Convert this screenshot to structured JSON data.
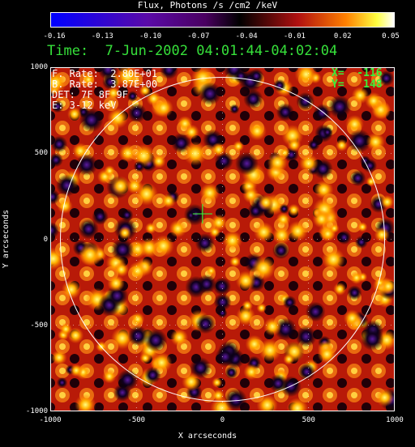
{
  "colorbar": {
    "title": "Flux, Photons /s /cm2 /keV",
    "ticks": [
      "-0.16",
      "-0.13",
      "-0.10",
      "-0.07",
      "-0.04",
      "-0.01",
      "0.02",
      "0.05"
    ]
  },
  "time_line": "Time:  7-Jun-2002 04:01:44-04:02:04",
  "info": {
    "f_rate": "F. Rate:  2.80E+01",
    "b_rate": "B. Rate:  3.87E+00",
    "det": "DET: 7F 8F 9F",
    "energy": "E: 3-12 keV"
  },
  "cursor": {
    "x_label": "X=  -116",
    "y_label": "Y=   148",
    "x": -116,
    "y": 148
  },
  "axes": {
    "xlabel": "X arcseconds",
    "ylabel": "Y arcseconds",
    "xticks": [
      "-1000",
      "-500",
      "0",
      "500",
      "1000"
    ],
    "yticks": [
      "1000",
      "500",
      "0",
      "-500",
      "-1000"
    ],
    "xlim": [
      -1000,
      1000
    ],
    "ylim": [
      -1000,
      1000
    ]
  },
  "colors": {
    "time_text": "#36e03a",
    "coord_text": "#3aee3a",
    "solar_limb": "#ffffff"
  }
}
